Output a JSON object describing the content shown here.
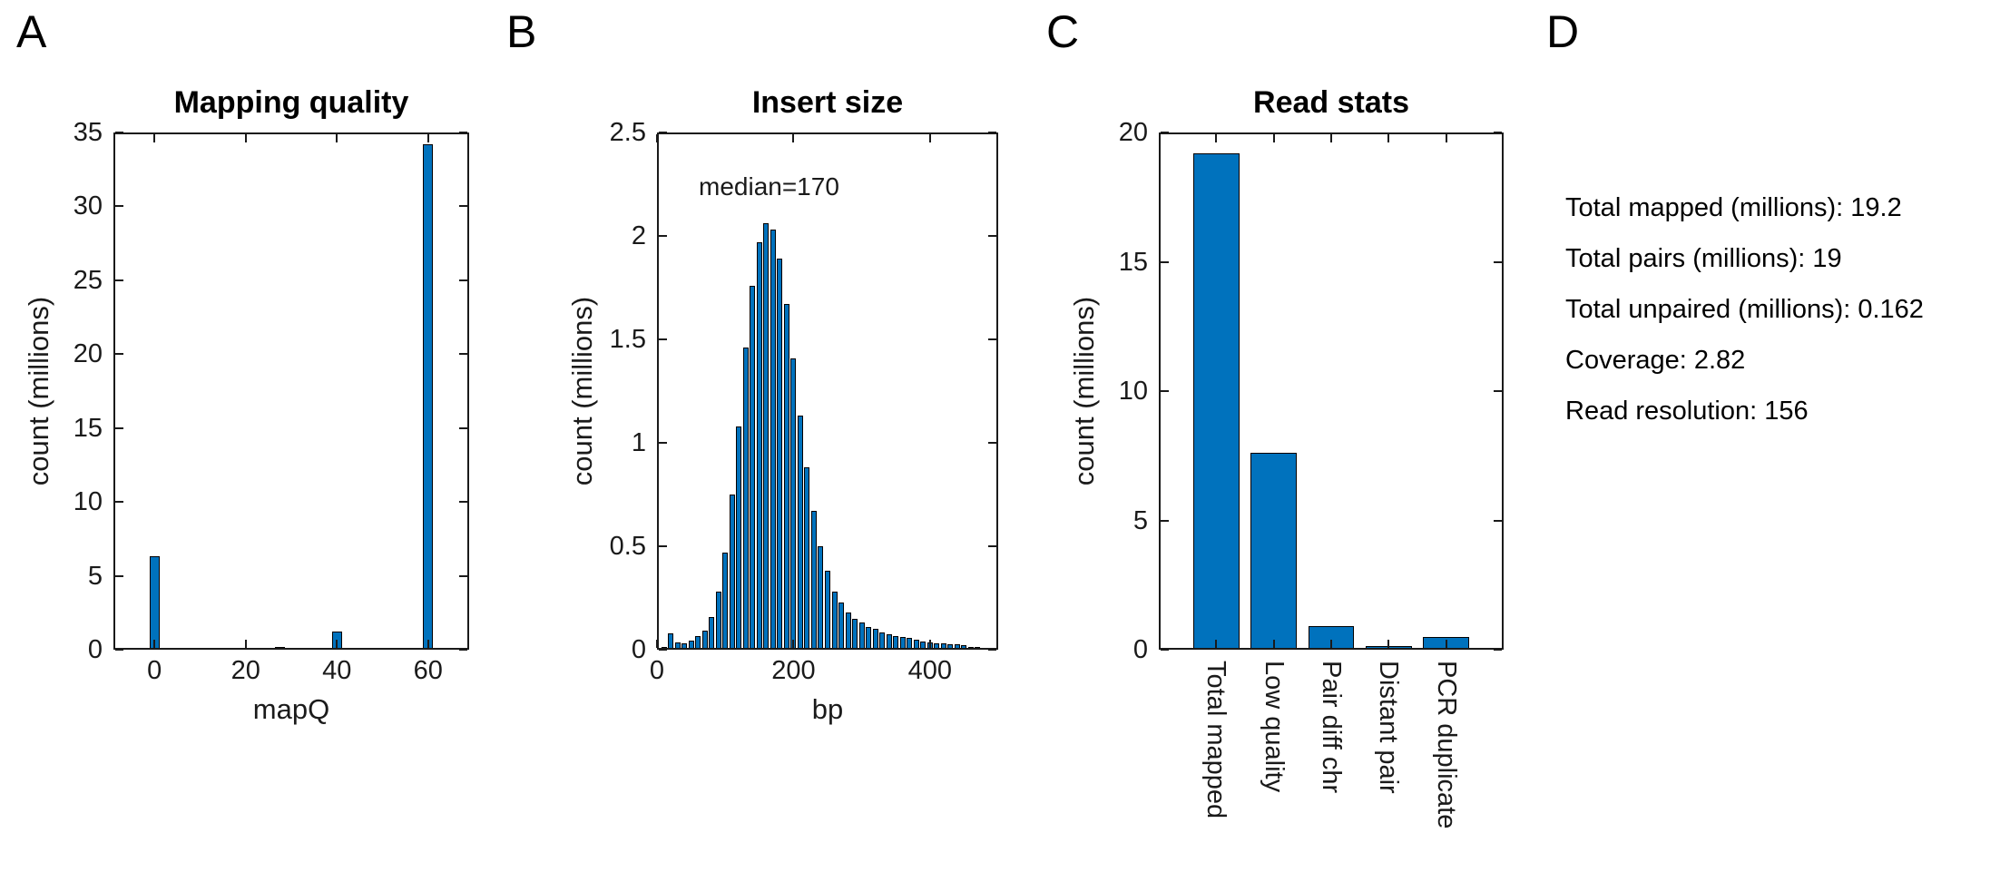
{
  "figure": {
    "background": "#ffffff",
    "bar_fill": "#0072BD",
    "bar_edge": "#000000",
    "axis_color": "#1a1a1a"
  },
  "panels": {
    "a_label": "A",
    "b_label": "B",
    "c_label": "C",
    "d_label": "D"
  },
  "chart_data": [
    {
      "id": "mapping-quality",
      "type": "bar",
      "title": "Mapping quality",
      "xlabel": "mapQ",
      "ylabel": "count (millions)",
      "xlim": [
        -9,
        69
      ],
      "ylim": [
        0,
        35
      ],
      "xticks": [
        0,
        20,
        40,
        60
      ],
      "yticks": [
        0,
        5,
        10,
        15,
        20,
        25,
        30,
        35
      ],
      "bar_width_units": 2.2,
      "grid": false,
      "bars": [
        [
          0,
          6.3
        ],
        [
          2.5,
          0.12
        ],
        [
          4.5,
          0.06
        ],
        [
          6,
          0.06
        ],
        [
          7.5,
          0.05
        ],
        [
          9,
          0.04
        ],
        [
          17.5,
          0.03
        ],
        [
          19.5,
          0.05
        ],
        [
          21,
          0.05
        ],
        [
          22.5,
          0.04
        ],
        [
          24.5,
          0.09
        ],
        [
          26,
          0.13
        ],
        [
          27.5,
          0.18
        ],
        [
          29,
          0.05
        ],
        [
          31,
          0.03
        ],
        [
          40,
          1.2
        ],
        [
          44,
          0.05
        ],
        [
          46,
          0.07
        ],
        [
          47.5,
          0.09
        ],
        [
          49,
          0.13
        ],
        [
          51,
          0.05
        ],
        [
          57,
          0.02
        ],
        [
          60,
          34.2
        ]
      ]
    },
    {
      "id": "insert-size",
      "type": "histogram",
      "title": "Insert size",
      "annotation": "median=170",
      "xlabel": "bp",
      "ylabel": "count (millions)",
      "xlim": [
        0,
        500
      ],
      "ylim": [
        0,
        2.5
      ],
      "xticks": [
        0,
        200,
        400
      ],
      "yticks": [
        0,
        0.5,
        1,
        1.5,
        2,
        2.5
      ],
      "bar_width_units": 8,
      "grid": false,
      "bars": [
        [
          10,
          0.015
        ],
        [
          20,
          0.08
        ],
        [
          30,
          0.035
        ],
        [
          40,
          0.03
        ],
        [
          50,
          0.045
        ],
        [
          60,
          0.065
        ],
        [
          70,
          0.09
        ],
        [
          80,
          0.16
        ],
        [
          90,
          0.28
        ],
        [
          100,
          0.47
        ],
        [
          110,
          0.75
        ],
        [
          120,
          1.08
        ],
        [
          130,
          1.46
        ],
        [
          140,
          1.76
        ],
        [
          150,
          1.97
        ],
        [
          160,
          2.06
        ],
        [
          170,
          2.03
        ],
        [
          180,
          1.89
        ],
        [
          190,
          1.67
        ],
        [
          200,
          1.41
        ],
        [
          210,
          1.13
        ],
        [
          220,
          0.88
        ],
        [
          230,
          0.67
        ],
        [
          240,
          0.5
        ],
        [
          250,
          0.38
        ],
        [
          260,
          0.28
        ],
        [
          270,
          0.23
        ],
        [
          280,
          0.18
        ],
        [
          290,
          0.15
        ],
        [
          300,
          0.13
        ],
        [
          310,
          0.11
        ],
        [
          320,
          0.1
        ],
        [
          330,
          0.085
        ],
        [
          340,
          0.075
        ],
        [
          350,
          0.065
        ],
        [
          360,
          0.06
        ],
        [
          370,
          0.055
        ],
        [
          380,
          0.05
        ],
        [
          390,
          0.04
        ],
        [
          400,
          0.035
        ],
        [
          410,
          0.03
        ],
        [
          420,
          0.03
        ],
        [
          430,
          0.025
        ],
        [
          440,
          0.025
        ],
        [
          450,
          0.02
        ],
        [
          460,
          0.015
        ],
        [
          470,
          0.015
        ],
        [
          480,
          0.01
        ],
        [
          490,
          0.005
        ]
      ]
    },
    {
      "id": "read-stats",
      "type": "bar",
      "title": "Read stats",
      "ylabel": "count (millions)",
      "xlabel": "",
      "categories": [
        "Total mapped",
        "Low quality",
        "Pair diff chr",
        "Distant pair",
        "PCR duplicate"
      ],
      "values": [
        19.2,
        7.6,
        0.9,
        0.15,
        0.5
      ],
      "ylim": [
        0,
        20
      ],
      "yticks": [
        0,
        5,
        10,
        15,
        20
      ],
      "grid": false
    }
  ],
  "panel_d": {
    "lines": [
      "Total mapped (millions): 19.2",
      "Total pairs (millions): 19",
      "Total unpaired (millions): 0.162",
      "Coverage: 2.82",
      "Read resolution: 156"
    ]
  }
}
